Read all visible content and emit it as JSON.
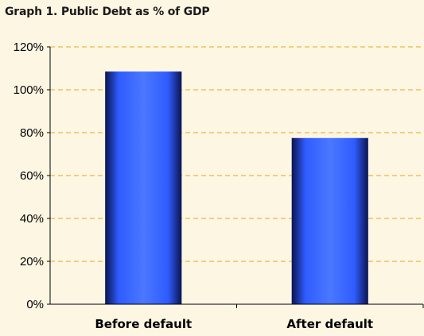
{
  "chart_data": {
    "type": "bar",
    "title": "Graph 1. Public Debt as % of GDP",
    "categories": [
      "Before default",
      "After default"
    ],
    "values": [
      108.5,
      77.5
    ],
    "ylim": [
      0,
      120
    ],
    "yticks": [
      "0%",
      "20%",
      "40%",
      "60%",
      "80%",
      "100%",
      "120%"
    ],
    "ytick_values": [
      0,
      20,
      40,
      60,
      80,
      100,
      120
    ],
    "grid": true,
    "grid_style": "dashed",
    "xlabel": "",
    "ylabel": "",
    "colors": {
      "background": "#fdf6e3",
      "grid": "#e6a817",
      "bar_light": "#3d6bff",
      "bar_dark": "#0a0f3c",
      "axis": "#000000"
    }
  }
}
